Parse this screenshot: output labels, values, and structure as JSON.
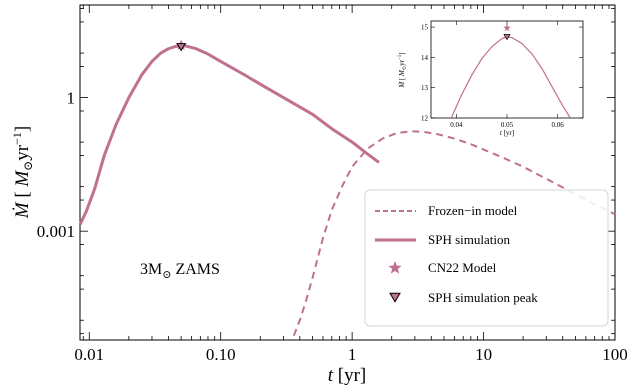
{
  "chart_data": {
    "main": {
      "type": "line",
      "x_scale": "log",
      "y_scale": "log",
      "xlim": [
        0.0085,
        100
      ],
      "ylim": [
        3.6e-06,
        120
      ],
      "x_ticks": [
        {
          "v": 0.01,
          "label": "0.01"
        },
        {
          "v": 0.1,
          "label": "0.10"
        },
        {
          "v": 1,
          "label": "1"
        },
        {
          "v": 10,
          "label": "10"
        },
        {
          "v": 100,
          "label": "100"
        }
      ],
      "y_ticks": [
        {
          "v": 0.001,
          "label": "0.001"
        },
        {
          "v": 1,
          "label": "1"
        }
      ],
      "xlabel": {
        "italic": "t",
        "rest": " [yr]"
      },
      "ylabel": {
        "mdot": "Ṁ",
        "open": " [ ",
        "msun": "M",
        "sun": "⊙",
        "unit": "yr",
        "exp": "−1",
        "close": "]"
      },
      "annotation": {
        "mass": "3M",
        "sun": "⊙",
        "rest": " ZAMS"
      },
      "color": "#c07090",
      "series": [
        {
          "name": "Frozen−in model",
          "style": "dashed",
          "x": [
            0.36,
            0.4,
            0.45,
            0.5,
            0.6,
            0.7,
            0.85,
            1.0,
            1.3,
            1.7,
            2.2,
            2.8,
            3.5,
            4.5,
            6,
            8,
            10,
            14,
            20,
            30,
            45,
            65,
            100
          ],
          "y": [
            4.5e-06,
            1e-05,
            3e-05,
            9e-05,
            0.0007,
            0.003,
            0.011,
            0.028,
            0.07,
            0.12,
            0.16,
            0.175,
            0.17,
            0.15,
            0.12,
            0.09,
            0.068,
            0.045,
            0.028,
            0.015,
            0.008,
            0.0045,
            0.0024
          ]
        },
        {
          "name": "SPH simulation",
          "style": "solid",
          "x": [
            0.0085,
            0.0095,
            0.011,
            0.013,
            0.016,
            0.02,
            0.025,
            0.03,
            0.035,
            0.04,
            0.045,
            0.05,
            0.055,
            0.065,
            0.08,
            0.1,
            0.15,
            0.2,
            0.3,
            0.5,
            0.7,
            1.0,
            1.3,
            1.6
          ],
          "y": [
            0.0014,
            0.0028,
            0.009,
            0.05,
            0.25,
            1.0,
            3.2,
            6.5,
            10,
            12.5,
            14,
            14.7,
            14.3,
            12.5,
            9.5,
            6.5,
            3.3,
            2.0,
            1.0,
            0.42,
            0.2,
            0.1,
            0.055,
            0.035
          ]
        }
      ],
      "markers": [
        {
          "name": "CN22 Model",
          "shape": "star",
          "x": 0.05,
          "y": 15.0
        },
        {
          "name": "SPH simulation peak",
          "shape": "triangle-down",
          "x": 0.05,
          "y": 14.7
        }
      ],
      "legend_location": "lower-right"
    },
    "inset": {
      "type": "line",
      "x_scale": "linear",
      "y_scale": "linear",
      "xlim": [
        0.035,
        0.065
      ],
      "ylim": [
        12,
        15.2
      ],
      "x_ticks": [
        {
          "v": 0.04,
          "label": "0.04"
        },
        {
          "v": 0.05,
          "label": "0.05"
        },
        {
          "v": 0.06,
          "label": "0.06"
        }
      ],
      "y_ticks": [
        {
          "v": 12,
          "label": "12"
        },
        {
          "v": 13,
          "label": "13"
        },
        {
          "v": 14,
          "label": "14"
        },
        {
          "v": 15,
          "label": "15"
        }
      ],
      "xlabel": {
        "italic": "t",
        "rest": " [yr]"
      },
      "ylabel": {
        "mdot": "Ṁ",
        "open": " [ ",
        "msun": "M",
        "sun": "⊙",
        "unit": "yr",
        "exp": "−1",
        "close": "]"
      },
      "curve": {
        "x": [
          0.039,
          0.041,
          0.043,
          0.045,
          0.047,
          0.049,
          0.05,
          0.051,
          0.053,
          0.055,
          0.057,
          0.059,
          0.061,
          0.0625
        ],
        "y": [
          12.0,
          12.75,
          13.4,
          13.95,
          14.35,
          14.62,
          14.68,
          14.65,
          14.45,
          14.1,
          13.6,
          13.0,
          12.4,
          12.0
        ]
      },
      "markers": [
        {
          "shape": "star",
          "x": 0.05,
          "y": 14.97
        },
        {
          "shape": "triangle-down",
          "x": 0.05,
          "y": 14.68
        }
      ]
    }
  }
}
